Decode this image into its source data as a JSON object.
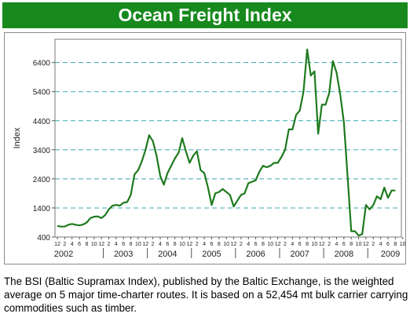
{
  "header": {
    "title": "Ocean Freight Index"
  },
  "caption": {
    "text": "The BSI (Baltic Supramax Index), published by the Baltic Exchange, is the weighted average on 5 major time-charter routes. It is based on a 52,454 mt bulk carrier carrying commodities such as timber."
  },
  "colors": {
    "title_bg": "#17891d",
    "line": "#1e7a1e",
    "grid": "#37a9b0"
  },
  "chart_data": {
    "type": "line",
    "title": "",
    "ylabel": "Index",
    "xlabel": "",
    "ylim": [
      400,
      7200
    ],
    "yticks": [
      "400",
      "1400",
      "2400",
      "3400",
      "4400",
      "5400",
      "6400"
    ],
    "grid": "horizontal dashed",
    "month_ticks": [
      "12",
      "2",
      "4",
      "6",
      "8",
      "10",
      "12",
      "2",
      "4",
      "6",
      "8",
      "10",
      "12",
      "2",
      "4",
      "6",
      "8",
      "10",
      "12",
      "2",
      "4",
      "6",
      "8",
      "10",
      "12",
      "2",
      "4",
      "6",
      "8",
      "10",
      "12",
      "2",
      "4",
      "6",
      "8",
      "10",
      "12",
      "2",
      "4",
      "6",
      "8",
      "10",
      "12",
      "2",
      "4",
      "6",
      "8",
      "10"
    ],
    "years": [
      "2002",
      "2003",
      "2004",
      "2005",
      "2006",
      "2007",
      "2008",
      "2009"
    ],
    "series": [
      {
        "values": [
          {
            "x": "2001-12",
            "y": 780
          },
          {
            "x": "2002-01",
            "y": 760
          },
          {
            "x": "2002-02",
            "y": 760
          },
          {
            "x": "2002-03",
            "y": 820
          },
          {
            "x": "2002-04",
            "y": 850
          },
          {
            "x": "2002-05",
            "y": 820
          },
          {
            "x": "2002-06",
            "y": 800
          },
          {
            "x": "2002-07",
            "y": 830
          },
          {
            "x": "2002-08",
            "y": 900
          },
          {
            "x": "2002-09",
            "y": 1050
          },
          {
            "x": "2002-10",
            "y": 1100
          },
          {
            "x": "2002-11",
            "y": 1110
          },
          {
            "x": "2002-12",
            "y": 1050
          },
          {
            "x": "2003-01",
            "y": 1150
          },
          {
            "x": "2003-02",
            "y": 1350
          },
          {
            "x": "2003-03",
            "y": 1480
          },
          {
            "x": "2003-04",
            "y": 1500
          },
          {
            "x": "2003-05",
            "y": 1480
          },
          {
            "x": "2003-06",
            "y": 1580
          },
          {
            "x": "2003-07",
            "y": 1600
          },
          {
            "x": "2003-08",
            "y": 1850
          },
          {
            "x": "2003-09",
            "y": 2550
          },
          {
            "x": "2003-10",
            "y": 2700
          },
          {
            "x": "2003-11",
            "y": 3000
          },
          {
            "x": "2003-12",
            "y": 3400
          },
          {
            "x": "2004-01",
            "y": 3900
          },
          {
            "x": "2004-02",
            "y": 3700
          },
          {
            "x": "2004-03",
            "y": 3200
          },
          {
            "x": "2004-04",
            "y": 2500
          },
          {
            "x": "2004-05",
            "y": 2200
          },
          {
            "x": "2004-06",
            "y": 2600
          },
          {
            "x": "2004-07",
            "y": 2850
          },
          {
            "x": "2004-08",
            "y": 3100
          },
          {
            "x": "2004-09",
            "y": 3300
          },
          {
            "x": "2004-10",
            "y": 3800
          },
          {
            "x": "2004-11",
            "y": 3350
          },
          {
            "x": "2004-12",
            "y": 2950
          },
          {
            "x": "2005-01",
            "y": 3200
          },
          {
            "x": "2005-02",
            "y": 3350
          },
          {
            "x": "2005-03",
            "y": 2700
          },
          {
            "x": "2005-04",
            "y": 2600
          },
          {
            "x": "2005-05",
            "y": 2100
          },
          {
            "x": "2005-06",
            "y": 1500
          },
          {
            "x": "2005-07",
            "y": 1900
          },
          {
            "x": "2005-08",
            "y": 1950
          },
          {
            "x": "2005-09",
            "y": 2050
          },
          {
            "x": "2005-10",
            "y": 1950
          },
          {
            "x": "2005-11",
            "y": 1850
          },
          {
            "x": "2005-12",
            "y": 1450
          },
          {
            "x": "2006-01",
            "y": 1650
          },
          {
            "x": "2006-02",
            "y": 1850
          },
          {
            "x": "2006-03",
            "y": 1900
          },
          {
            "x": "2006-04",
            "y": 2250
          },
          {
            "x": "2006-05",
            "y": 2300
          },
          {
            "x": "2006-06",
            "y": 2350
          },
          {
            "x": "2006-07",
            "y": 2650
          },
          {
            "x": "2006-08",
            "y": 2850
          },
          {
            "x": "2006-09",
            "y": 2800
          },
          {
            "x": "2006-10",
            "y": 2850
          },
          {
            "x": "2006-11",
            "y": 2950
          },
          {
            "x": "2006-12",
            "y": 2950
          },
          {
            "x": "2007-01",
            "y": 3150
          },
          {
            "x": "2007-02",
            "y": 3400
          },
          {
            "x": "2007-03",
            "y": 4100
          },
          {
            "x": "2007-04",
            "y": 4100
          },
          {
            "x": "2007-05",
            "y": 4600
          },
          {
            "x": "2007-06",
            "y": 4750
          },
          {
            "x": "2007-07",
            "y": 5400
          },
          {
            "x": "2007-08",
            "y": 6850
          },
          {
            "x": "2007-09",
            "y": 5950
          },
          {
            "x": "2007-10",
            "y": 6100
          },
          {
            "x": "2007-11",
            "y": 3950
          },
          {
            "x": "2007-12",
            "y": 4950
          },
          {
            "x": "2008-01",
            "y": 4950
          },
          {
            "x": "2008-02",
            "y": 5350
          },
          {
            "x": "2008-03",
            "y": 6450
          },
          {
            "x": "2008-04",
            "y": 6050
          },
          {
            "x": "2008-05",
            "y": 5300
          },
          {
            "x": "2008-06",
            "y": 4350
          },
          {
            "x": "2008-07",
            "y": 2500
          },
          {
            "x": "2008-08",
            "y": 600
          },
          {
            "x": "2008-09",
            "y": 600
          },
          {
            "x": "2008-10",
            "y": 450
          },
          {
            "x": "2008-11",
            "y": 500
          },
          {
            "x": "2008-12",
            "y": 1500
          },
          {
            "x": "2009-01",
            "y": 1350
          },
          {
            "x": "2009-02",
            "y": 1500
          },
          {
            "x": "2009-03",
            "y": 1800
          },
          {
            "x": "2009-04",
            "y": 1700
          },
          {
            "x": "2009-05",
            "y": 2100
          },
          {
            "x": "2009-06",
            "y": 1750
          },
          {
            "x": "2009-07",
            "y": 2000
          },
          {
            "x": "2009-08",
            "y": 2000
          }
        ]
      }
    ]
  }
}
